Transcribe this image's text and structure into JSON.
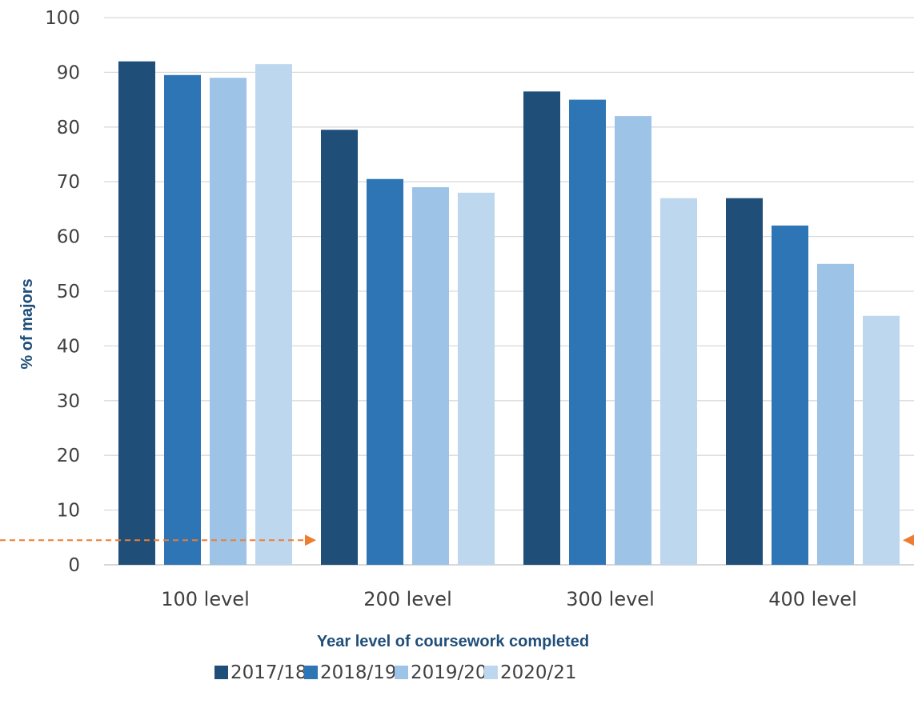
{
  "chart_data": {
    "type": "bar",
    "title": "",
    "xlabel": "Year level of coursework completed",
    "ylabel": "% of majors",
    "ylim": [
      0,
      100
    ],
    "yticks": [
      "0",
      "10",
      "20",
      "30",
      "40",
      "50",
      "60",
      "70",
      "80",
      "90",
      "100"
    ],
    "grid": true,
    "legend_position": "bottom",
    "categories": [
      "100 level",
      "200 level",
      "300 level",
      "400 level"
    ],
    "series": [
      {
        "name": "2017/18",
        "color": "#1f4e79",
        "values": [
          92,
          79.5,
          86.5,
          67
        ]
      },
      {
        "name": "2018/19",
        "color": "#2e75b6",
        "values": [
          89.5,
          70.5,
          85,
          62
        ]
      },
      {
        "name": "2019/20",
        "color": "#9dc3e6",
        "values": [
          89,
          69,
          82,
          55
        ]
      },
      {
        "name": "2020/21",
        "color": "#bdd7ee",
        "values": [
          91.5,
          68,
          67,
          45.5
        ]
      }
    ],
    "annotations": {
      "dashed_arrow_color": "#ed7d31",
      "dashed_arrow_value": 4.5
    }
  }
}
